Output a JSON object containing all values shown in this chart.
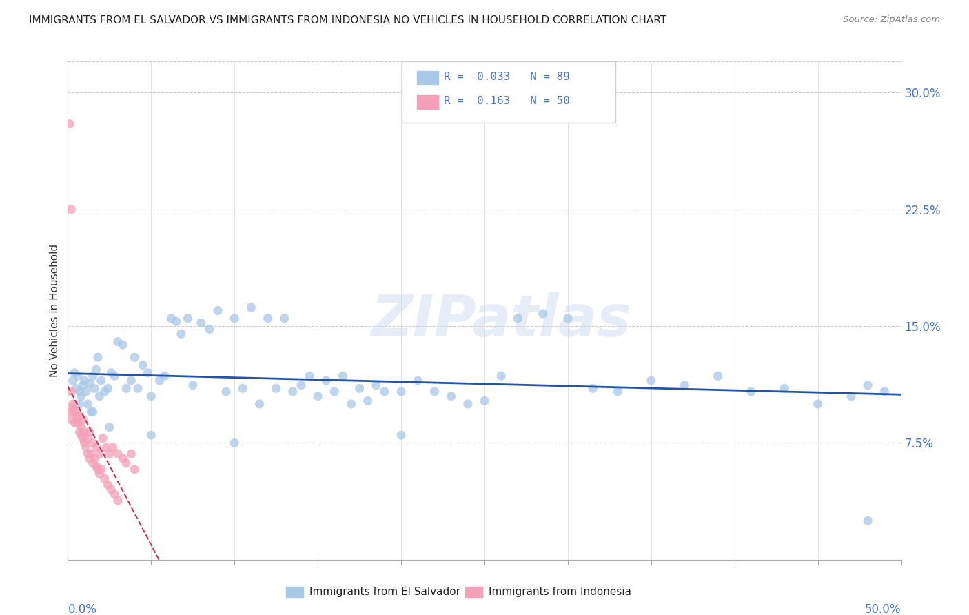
{
  "title": "IMMIGRANTS FROM EL SALVADOR VS IMMIGRANTS FROM INDONESIA NO VEHICLES IN HOUSEHOLD CORRELATION CHART",
  "source": "Source: ZipAtlas.com",
  "ylabel": "No Vehicles in Household",
  "xlim": [
    0.0,
    0.5
  ],
  "ylim": [
    0.0,
    0.32
  ],
  "y_ticks": [
    0.0,
    0.075,
    0.15,
    0.225,
    0.3
  ],
  "y_tick_labels": [
    "",
    "7.5%",
    "15.0%",
    "22.5%",
    "30.0%"
  ],
  "color_el_salvador": "#a8c8e8",
  "color_indonesia": "#f4a0b8",
  "color_trend_el_salvador": "#2255aa",
  "color_trend_indonesia": "#cc3355",
  "watermark": "ZIPatlas",
  "legend_r1": "-0.033",
  "legend_n1": "89",
  "legend_r2": "0.163",
  "legend_n2": "50",
  "el_salvador_x": [
    0.003,
    0.004,
    0.005,
    0.006,
    0.007,
    0.008,
    0.009,
    0.01,
    0.011,
    0.012,
    0.013,
    0.014,
    0.015,
    0.016,
    0.017,
    0.018,
    0.019,
    0.02,
    0.022,
    0.024,
    0.026,
    0.028,
    0.03,
    0.033,
    0.035,
    0.038,
    0.04,
    0.042,
    0.045,
    0.048,
    0.05,
    0.055,
    0.058,
    0.062,
    0.065,
    0.068,
    0.072,
    0.075,
    0.08,
    0.085,
    0.09,
    0.095,
    0.1,
    0.105,
    0.11,
    0.115,
    0.12,
    0.125,
    0.13,
    0.135,
    0.14,
    0.145,
    0.15,
    0.155,
    0.16,
    0.165,
    0.17,
    0.175,
    0.18,
    0.185,
    0.19,
    0.2,
    0.21,
    0.22,
    0.23,
    0.24,
    0.25,
    0.26,
    0.27,
    0.285,
    0.3,
    0.315,
    0.33,
    0.35,
    0.37,
    0.39,
    0.41,
    0.43,
    0.45,
    0.47,
    0.48,
    0.49,
    0.007,
    0.015,
    0.025,
    0.05,
    0.1,
    0.2,
    0.48
  ],
  "el_salvador_y": [
    0.115,
    0.12,
    0.11,
    0.118,
    0.108,
    0.105,
    0.112,
    0.115,
    0.108,
    0.1,
    0.113,
    0.095,
    0.118,
    0.11,
    0.122,
    0.13,
    0.105,
    0.115,
    0.108,
    0.11,
    0.12,
    0.118,
    0.14,
    0.138,
    0.11,
    0.115,
    0.13,
    0.11,
    0.125,
    0.12,
    0.105,
    0.115,
    0.118,
    0.155,
    0.153,
    0.145,
    0.155,
    0.112,
    0.152,
    0.148,
    0.16,
    0.108,
    0.155,
    0.11,
    0.162,
    0.1,
    0.155,
    0.11,
    0.155,
    0.108,
    0.112,
    0.118,
    0.105,
    0.115,
    0.108,
    0.118,
    0.1,
    0.11,
    0.102,
    0.112,
    0.108,
    0.108,
    0.115,
    0.108,
    0.105,
    0.1,
    0.102,
    0.118,
    0.155,
    0.158,
    0.155,
    0.11,
    0.108,
    0.115,
    0.112,
    0.118,
    0.108,
    0.11,
    0.1,
    0.105,
    0.112,
    0.108,
    0.1,
    0.095,
    0.085,
    0.08,
    0.075,
    0.08,
    0.025
  ],
  "indonesia_x": [
    0.001,
    0.002,
    0.003,
    0.004,
    0.005,
    0.006,
    0.007,
    0.008,
    0.009,
    0.01,
    0.012,
    0.013,
    0.015,
    0.017,
    0.019,
    0.021,
    0.023,
    0.025,
    0.027,
    0.03,
    0.033,
    0.035,
    0.038,
    0.04,
    0.002,
    0.003,
    0.004,
    0.005,
    0.006,
    0.007,
    0.008,
    0.009,
    0.01,
    0.011,
    0.012,
    0.013,
    0.014,
    0.015,
    0.016,
    0.017,
    0.018,
    0.019,
    0.02,
    0.022,
    0.024,
    0.026,
    0.028,
    0.03,
    0.001,
    0.002
  ],
  "indonesia_y": [
    0.095,
    0.09,
    0.1,
    0.088,
    0.095,
    0.088,
    0.092,
    0.085,
    0.09,
    0.082,
    0.078,
    0.082,
    0.075,
    0.072,
    0.068,
    0.078,
    0.072,
    0.068,
    0.072,
    0.068,
    0.065,
    0.062,
    0.068,
    0.058,
    0.108,
    0.098,
    0.095,
    0.092,
    0.088,
    0.082,
    0.08,
    0.078,
    0.075,
    0.072,
    0.068,
    0.065,
    0.068,
    0.062,
    0.065,
    0.06,
    0.058,
    0.055,
    0.058,
    0.052,
    0.048,
    0.045,
    0.042,
    0.038,
    0.28,
    0.225
  ]
}
